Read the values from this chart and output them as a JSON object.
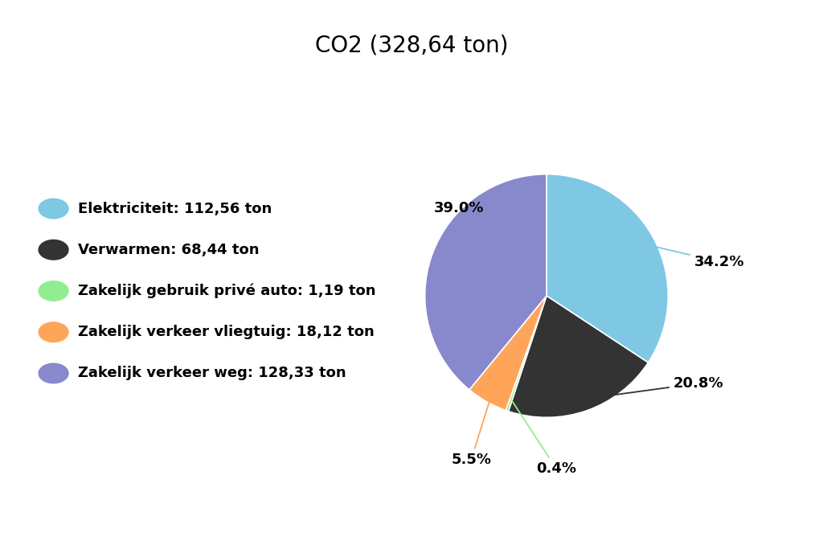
{
  "title": "CO2 (328,64 ton)",
  "title_fontsize": 20,
  "slices": [
    112.56,
    68.44,
    1.19,
    18.12,
    128.33
  ],
  "labels": [
    "Elektriciteit: 112,56 ton",
    "Verwarmen: 68,44 ton",
    "Zakelijk gebruik privé auto: 1,19 ton",
    "Zakelijk verkeer vliegtuig: 18,12 ton",
    "Zakelijk verkeer weg: 128,33 ton"
  ],
  "colors": [
    "#7EC8E3",
    "#333333",
    "#90EE90",
    "#FFA55A",
    "#8888CC"
  ],
  "pct_labels": [
    "34.2%",
    "20.8%",
    "0.4%",
    "5.5%",
    "39.0%"
  ],
  "background_color": "#ffffff",
  "legend_fontsize": 13,
  "pct_fontsize": 13
}
